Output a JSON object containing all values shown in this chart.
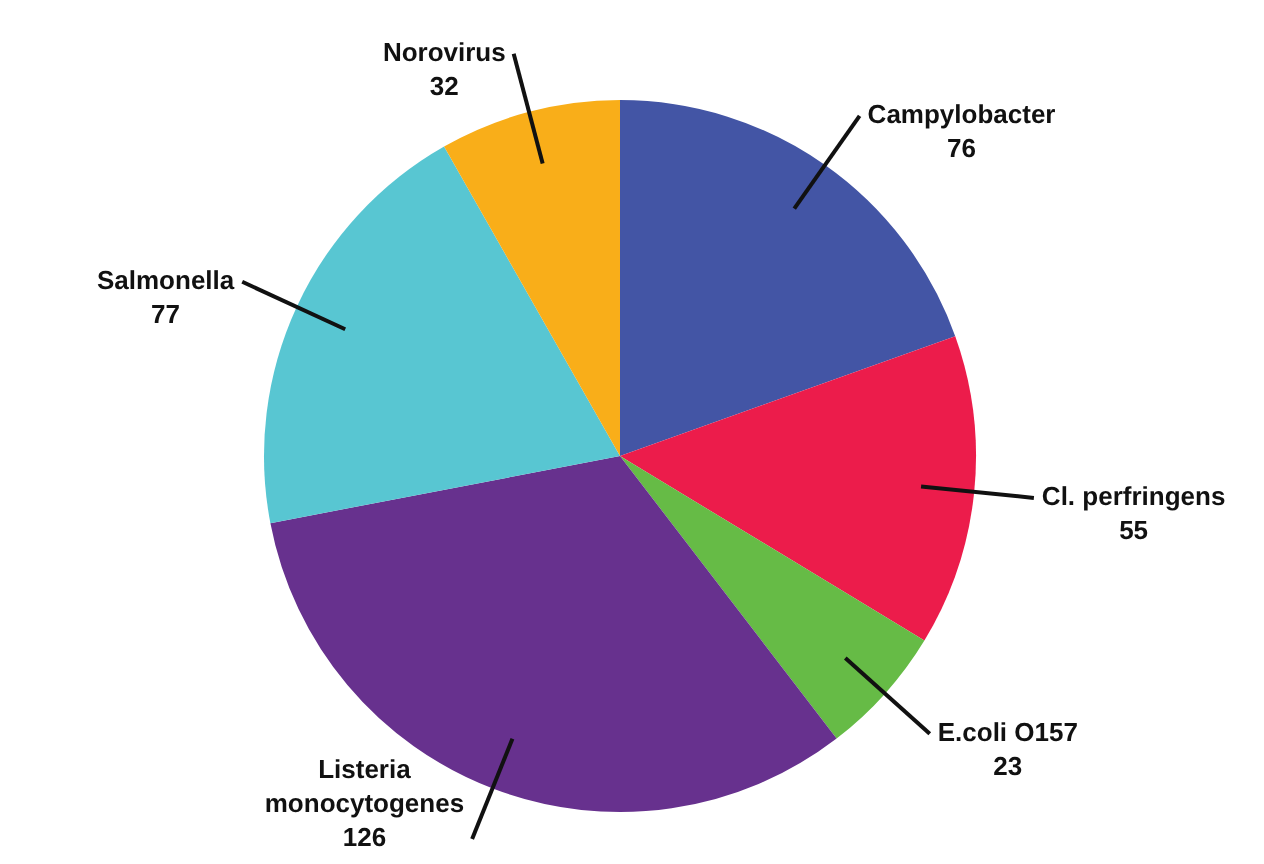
{
  "chart_data": {
    "type": "pie",
    "categories": [
      "Campylobacter",
      "Cl. perfringens",
      "E.coli O157",
      "Listeria monocytogenes",
      "Salmonella",
      "Norovirus"
    ],
    "values": [
      76,
      55,
      23,
      126,
      77,
      32
    ],
    "colors": [
      "#4355a5",
      "#ec1c4b",
      "#66bb46",
      "#67318e",
      "#58c6d2",
      "#f9ae19"
    ],
    "data_labels": true,
    "legend": false
  }
}
